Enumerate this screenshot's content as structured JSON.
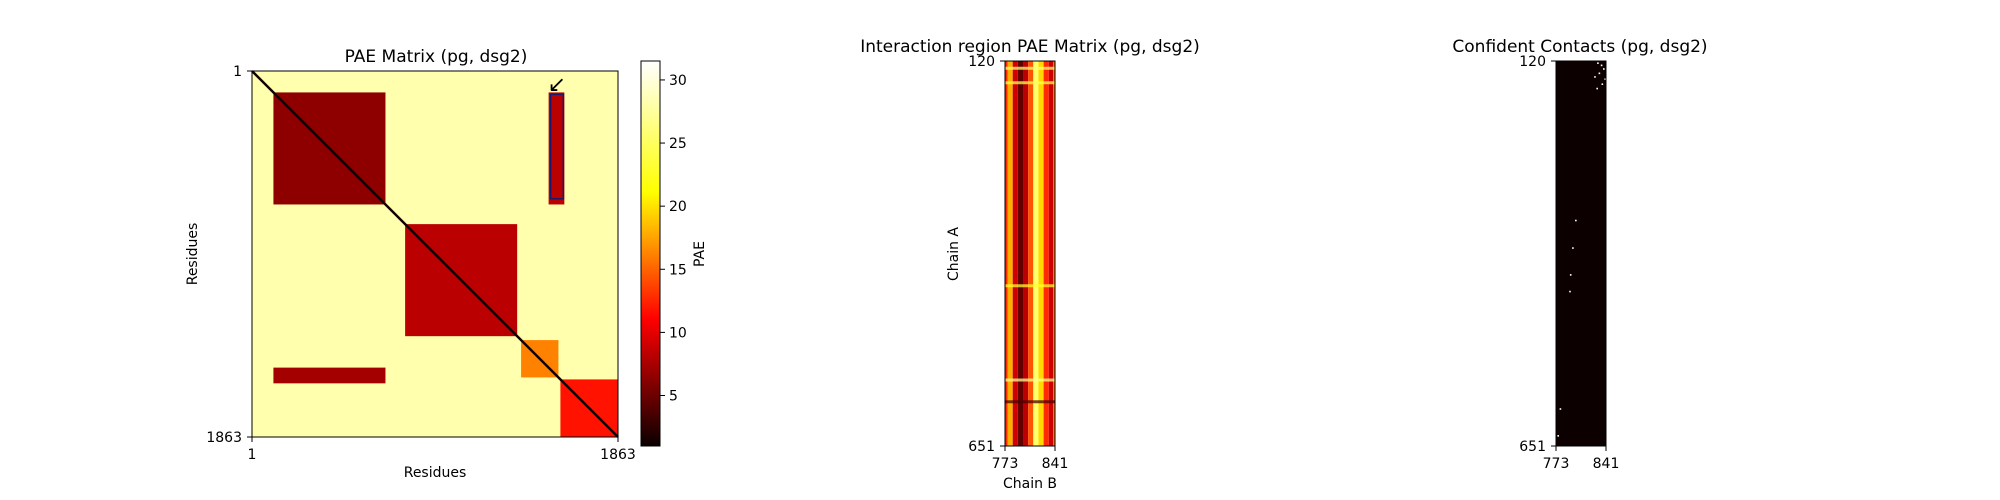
{
  "chart_data": [
    {
      "type": "heatmap",
      "title": "PAE Matrix (pg, dsg2)",
      "xlabel": "Residues",
      "ylabel": "Residues",
      "xlim": [
        1,
        1863
      ],
      "ylim": [
        1,
        1863
      ],
      "x_ticks": [
        "1",
        "1863"
      ],
      "y_ticks": [
        "1",
        "1863"
      ],
      "colormap": "hot",
      "blocks": [
        {
          "x0": 1,
          "x1": 1863,
          "y0": 1,
          "y1": 1863,
          "value": 29
        },
        {
          "x0": 110,
          "x1": 680,
          "y0": 110,
          "y1": 680,
          "value": 7
        },
        {
          "x0": 780,
          "x1": 1350,
          "y0": 780,
          "y1": 1350,
          "value": 9
        },
        {
          "x0": 1370,
          "x1": 1560,
          "y0": 1370,
          "y1": 1560,
          "value": 18
        },
        {
          "x0": 1570,
          "x1": 1863,
          "y0": 1570,
          "y1": 1863,
          "value": 13
        },
        {
          "x0": 110,
          "x1": 680,
          "y0": 1510,
          "y1": 1590,
          "value": 8
        },
        {
          "x0": 1510,
          "x1": 1590,
          "y0": 110,
          "y1": 680,
          "value": 9
        }
      ],
      "highlight_box": {
        "x0": 1520,
        "x1": 1585,
        "y0": 120,
        "y1": 651
      },
      "annotation": "↙",
      "colorbar": {
        "label": "PAE",
        "min": 1,
        "max": 31.5,
        "ticks": [
          5,
          10,
          15,
          20,
          25,
          30
        ]
      }
    },
    {
      "type": "heatmap",
      "title": "Interaction region PAE Matrix (pg, dsg2)",
      "xlabel": "Chain B",
      "ylabel": "Chain A",
      "xlim": [
        773,
        841
      ],
      "ylim": [
        120,
        651
      ],
      "x_ticks": [
        "773",
        "841"
      ],
      "y_ticks": [
        "120",
        "651"
      ],
      "colormap": "hot",
      "column_profile": [
        {
          "x": 773,
          "value": 14
        },
        {
          "x": 780,
          "value": 20
        },
        {
          "x": 787,
          "value": 10
        },
        {
          "x": 794,
          "value": 5
        },
        {
          "x": 801,
          "value": 9
        },
        {
          "x": 808,
          "value": 16
        },
        {
          "x": 815,
          "value": 27
        },
        {
          "x": 822,
          "value": 22
        },
        {
          "x": 829,
          "value": 14
        },
        {
          "x": 836,
          "value": 10
        },
        {
          "x": 841,
          "value": 17
        }
      ],
      "row_highlights": [
        {
          "y": 130,
          "value": 27
        },
        {
          "y": 150,
          "value": 26
        },
        {
          "y": 430,
          "value": 25
        },
        {
          "y": 560,
          "value": 28
        },
        {
          "y": 590,
          "value": 4
        }
      ]
    },
    {
      "type": "heatmap",
      "title": "Confident Contacts (pg, dsg2)",
      "xlabel": "",
      "ylabel": "",
      "xlim": [
        773,
        841
      ],
      "ylim": [
        120,
        651
      ],
      "x_ticks": [
        "773",
        "841"
      ],
      "y_ticks": [
        "120",
        "651"
      ],
      "background": "#0d0000",
      "points": [
        {
          "x": 830,
          "y": 123
        },
        {
          "x": 835,
          "y": 126
        },
        {
          "x": 838,
          "y": 131
        },
        {
          "x": 832,
          "y": 137
        },
        {
          "x": 826,
          "y": 142
        },
        {
          "x": 840,
          "y": 145
        },
        {
          "x": 836,
          "y": 152
        },
        {
          "x": 829,
          "y": 158
        },
        {
          "x": 800,
          "y": 340
        },
        {
          "x": 796,
          "y": 378
        },
        {
          "x": 793,
          "y": 415
        },
        {
          "x": 792,
          "y": 438
        },
        {
          "x": 779,
          "y": 600
        },
        {
          "x": 776,
          "y": 637
        }
      ]
    }
  ]
}
